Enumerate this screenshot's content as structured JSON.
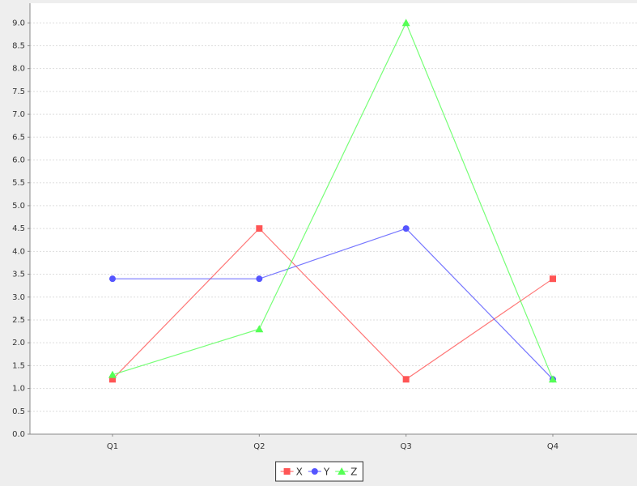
{
  "chart_data": {
    "type": "line",
    "categories": [
      "Q1",
      "Q2",
      "Q3",
      "Q4"
    ],
    "series": [
      {
        "name": "X",
        "color": "#ff5555",
        "marker": "square",
        "values": [
          1.2,
          4.5,
          1.2,
          3.4
        ]
      },
      {
        "name": "Y",
        "color": "#5555ff",
        "marker": "circle",
        "values": [
          3.4,
          3.4,
          4.5,
          1.2
        ]
      },
      {
        "name": "Z",
        "color": "#55ff55",
        "marker": "triangle",
        "values": [
          1.3,
          2.3,
          9.0,
          1.2
        ]
      }
    ],
    "ylim": [
      0,
      9.43
    ],
    "yticks": [
      {
        "value": 0,
        "label": "0.0"
      },
      {
        "value": 0.5,
        "label": "0.5"
      },
      {
        "value": 1,
        "label": "1.0"
      },
      {
        "value": 1.5,
        "label": "1.5"
      },
      {
        "value": 2,
        "label": "2.0"
      },
      {
        "value": 2.5,
        "label": "2.5"
      },
      {
        "value": 3,
        "label": "3.0"
      },
      {
        "value": 3.5,
        "label": "3.5"
      },
      {
        "value": 4,
        "label": "4.0"
      },
      {
        "value": 4.5,
        "label": "4.5"
      },
      {
        "value": 5,
        "label": "5.0"
      },
      {
        "value": 5.5,
        "label": "5.5"
      },
      {
        "value": 6,
        "label": "6.0"
      },
      {
        "value": 6.5,
        "label": "6.5"
      },
      {
        "value": 7,
        "label": "7.0"
      },
      {
        "value": 7.5,
        "label": "7.5"
      },
      {
        "value": 8,
        "label": "8.0"
      },
      {
        "value": 8.5,
        "label": "8.5"
      },
      {
        "value": 9,
        "label": "9.0"
      }
    ],
    "grid": true,
    "legend": "bottom"
  }
}
